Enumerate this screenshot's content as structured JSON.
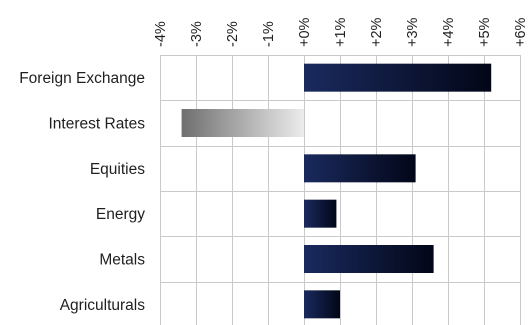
{
  "chart_data": {
    "type": "bar",
    "orientation": "horizontal",
    "title": "",
    "xlabel": "",
    "ylabel": "",
    "categories": [
      "Foreign Exchange",
      "Interest Rates",
      "Equities",
      "Energy",
      "Metals",
      "Agriculturals"
    ],
    "values": [
      5.2,
      -3.4,
      3.1,
      0.9,
      3.6,
      1.0
    ],
    "unit": "%",
    "xlim": [
      -4,
      6
    ],
    "x_ticks": [
      -4,
      -3,
      -2,
      -1,
      0,
      1,
      2,
      3,
      4,
      5,
      6
    ],
    "x_tick_labels": [
      "-4%",
      "-3%",
      "-2%",
      "-1%",
      "+0%",
      "+1%",
      "+2%",
      "+3%",
      "+4%",
      "+5%",
      "+6%"
    ],
    "x_axis_position": "top",
    "tick_label_rotation": "vertical",
    "grid": true,
    "legend": "none",
    "colors": {
      "positive_dark": "#020617",
      "positive_light": "#1a2a5e",
      "negative_dark": "#6f6f6f",
      "negative_light": "#ececec",
      "grid": "#c9c9c9",
      "text": "#1f1f1f"
    }
  }
}
